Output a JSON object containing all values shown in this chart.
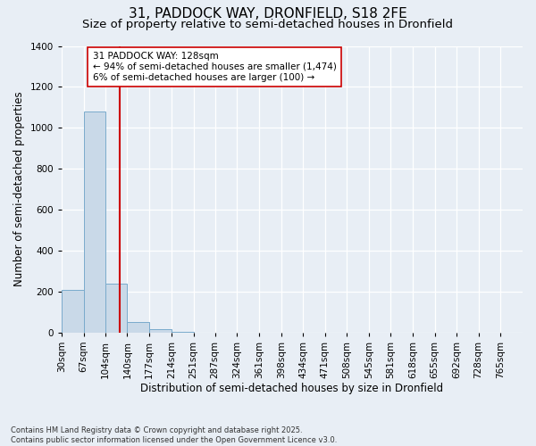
{
  "title": "31, PADDOCK WAY, DRONFIELD, S18 2FE",
  "subtitle": "Size of property relative to semi-detached houses in Dronfield",
  "xlabel": "Distribution of semi-detached houses by size in Dronfield",
  "ylabel": "Number of semi-detached properties",
  "footnote": "Contains HM Land Registry data © Crown copyright and database right 2025.\nContains public sector information licensed under the Open Government Licence v3.0.",
  "bin_labels": [
    "30sqm",
    "67sqm",
    "104sqm",
    "140sqm",
    "177sqm",
    "214sqm",
    "251sqm",
    "287sqm",
    "324sqm",
    "361sqm",
    "398sqm",
    "434sqm",
    "471sqm",
    "508sqm",
    "545sqm",
    "581sqm",
    "618sqm",
    "655sqm",
    "692sqm",
    "728sqm",
    "765sqm"
  ],
  "bin_edges": [
    30,
    67,
    104,
    140,
    177,
    214,
    251,
    287,
    324,
    361,
    398,
    434,
    471,
    508,
    545,
    581,
    618,
    655,
    692,
    728,
    765,
    802
  ],
  "bar_values": [
    210,
    1080,
    240,
    50,
    15,
    2,
    1,
    0,
    0,
    0,
    0,
    0,
    0,
    0,
    0,
    0,
    0,
    0,
    0,
    0,
    0
  ],
  "bar_color": "#c9d9e8",
  "bar_edge_color": "#7aabcc",
  "vline_x": 128,
  "vline_color": "#cc0000",
  "annotation_line1": "31 PADDOCK WAY: 128sqm",
  "annotation_line2": "← 94% of semi-detached houses are smaller (1,474)",
  "annotation_line3": "6% of semi-detached houses are larger (100) →",
  "annotation_box_color": "#ffffff",
  "annotation_box_edge": "#cc0000",
  "ylim": [
    0,
    1400
  ],
  "yticks": [
    0,
    200,
    400,
    600,
    800,
    1000,
    1200,
    1400
  ],
  "bg_color": "#e8eef5",
  "grid_color": "#ffffff",
  "title_fontsize": 11,
  "subtitle_fontsize": 9.5,
  "axis_label_fontsize": 8.5,
  "tick_fontsize": 7.5,
  "footnote_fontsize": 6
}
